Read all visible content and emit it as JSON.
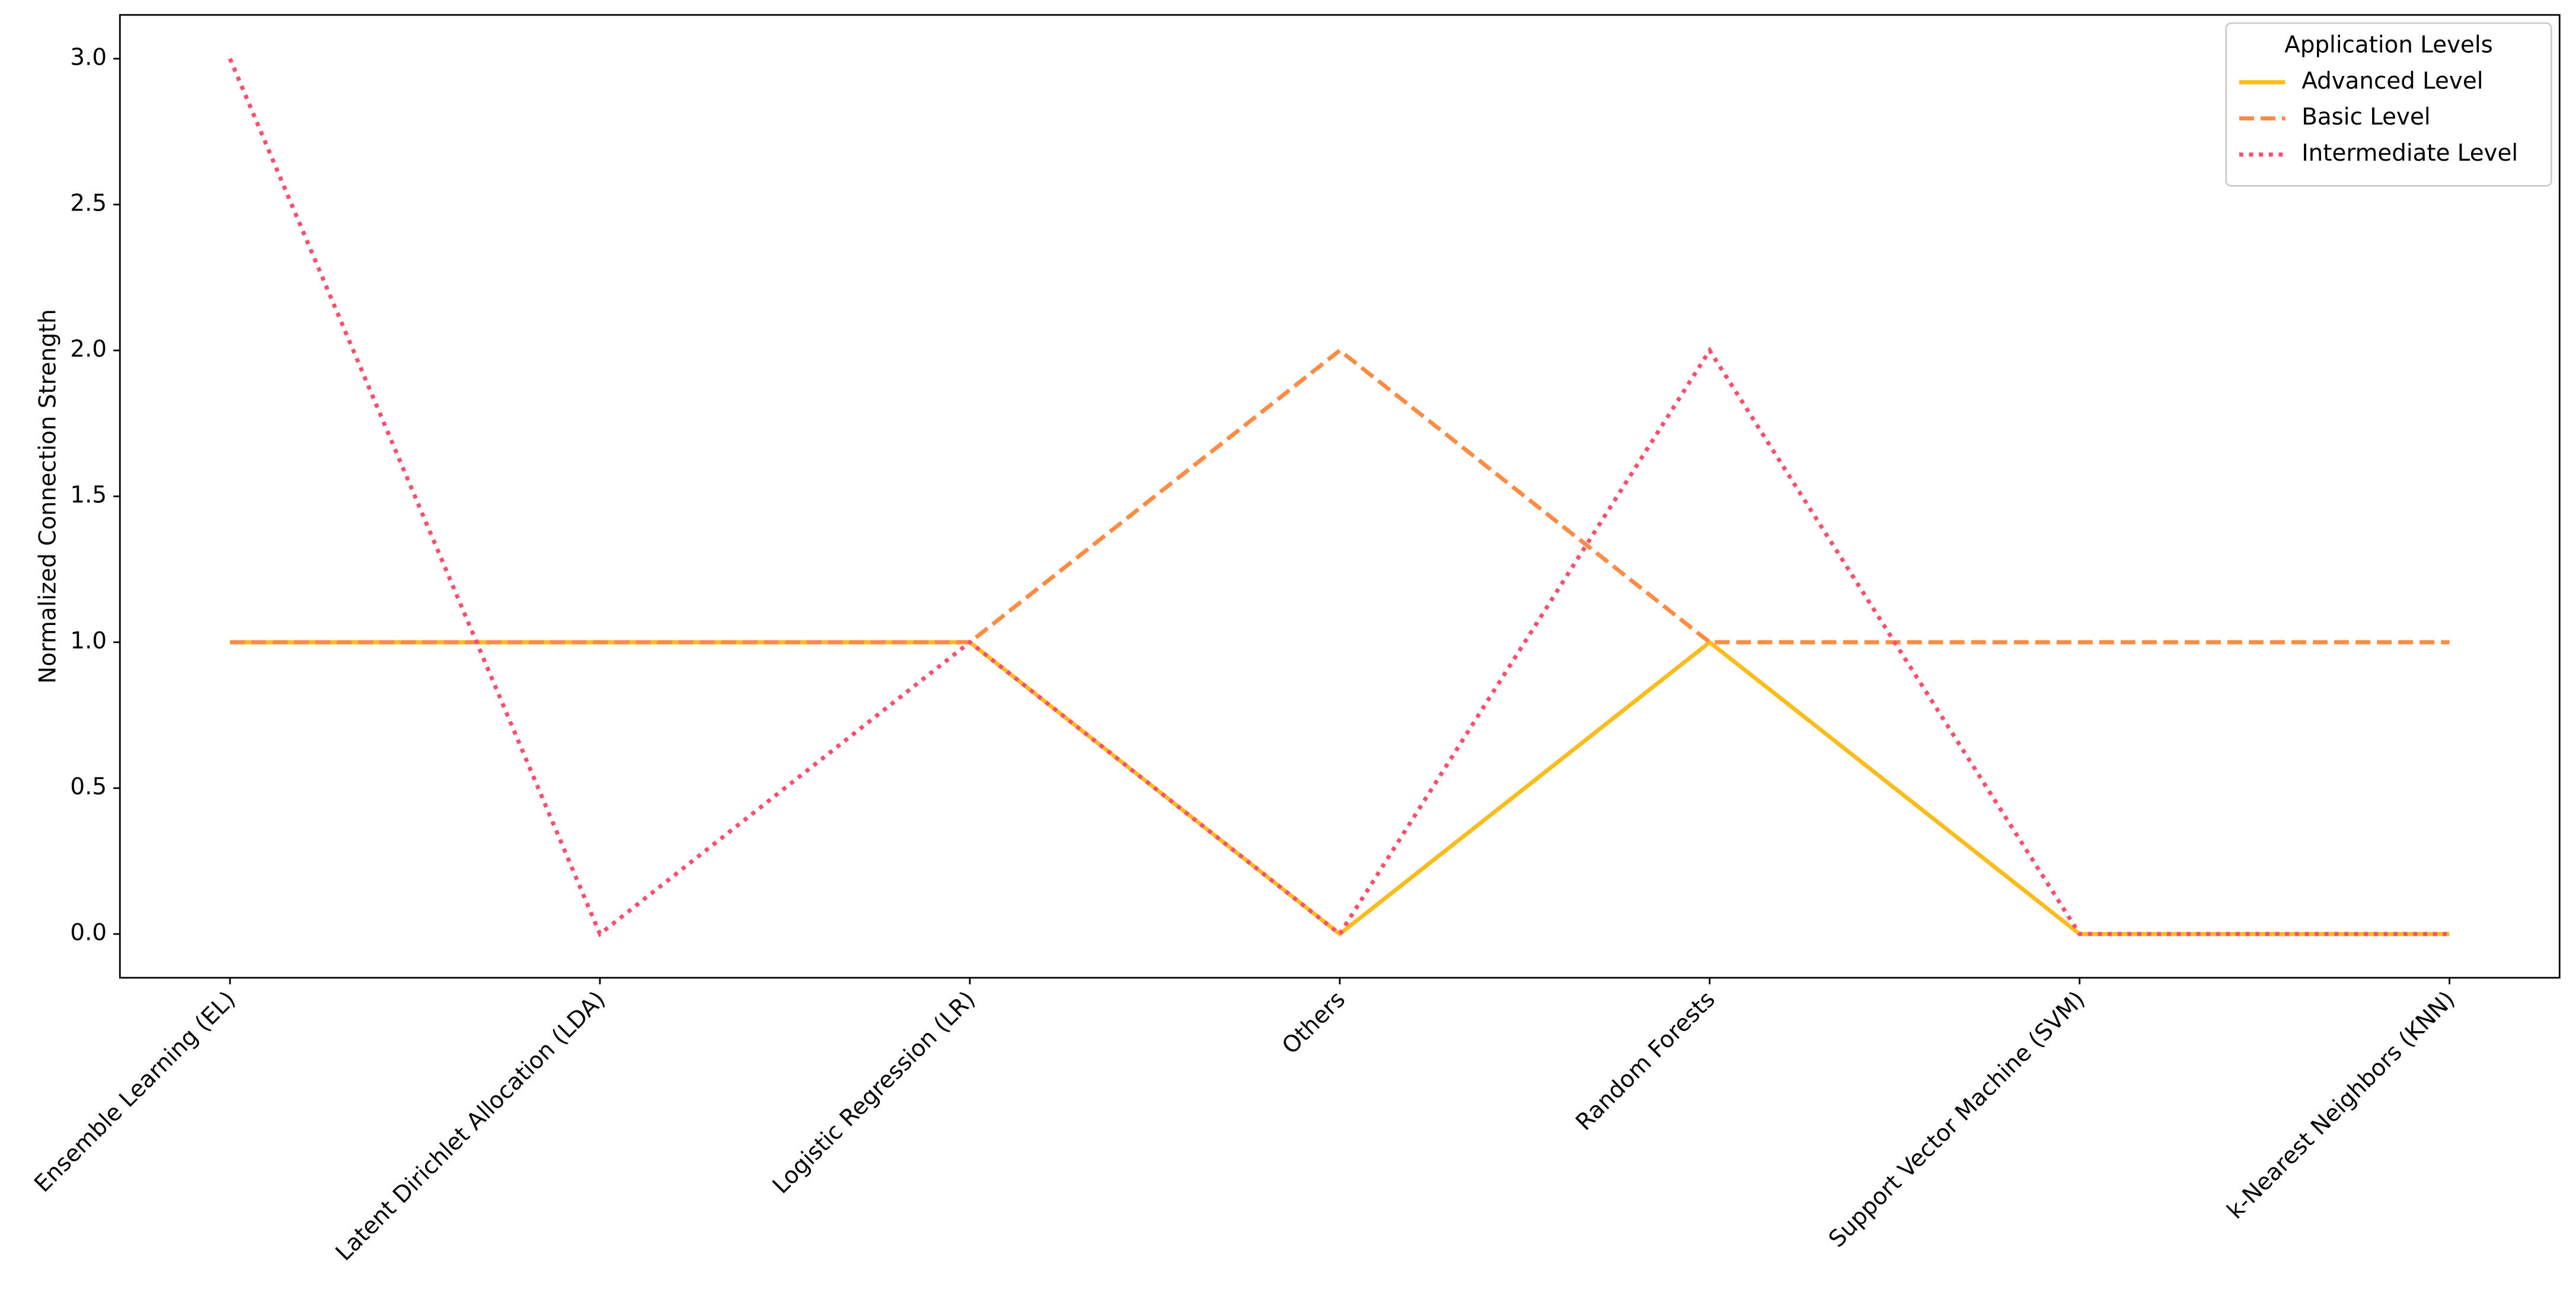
{
  "chart_data": {
    "type": "line",
    "ylabel": "Normalized Connection Strength",
    "categories": [
      "Ensemble Learning (EL)",
      "Latent Dirichlet Allocation (LDA)",
      "Logistic Regression (LR)",
      "Others",
      "Random Forests",
      "Support Vector Machine (SVM)",
      "k-Nearest Neighbors (KNN)"
    ],
    "series": [
      {
        "name": "Advanced Level",
        "color": "#fbbc1c",
        "dash": "solid",
        "values": [
          1,
          1,
          1,
          0,
          1,
          0,
          0
        ]
      },
      {
        "name": "Basic Level",
        "color": "#ff8c42",
        "dash": "dashed",
        "values": [
          1,
          1,
          1,
          2,
          1,
          1,
          1
        ]
      },
      {
        "name": "Intermediate Level",
        "color": "#ff4d6d",
        "dash": "dotted",
        "values": [
          3,
          0,
          1,
          0,
          2,
          0,
          0
        ]
      }
    ],
    "legend": {
      "title": "Application Levels",
      "position": "upper right"
    },
    "ylim": [
      -0.15,
      3.15
    ],
    "yticks": [
      {
        "value": 0,
        "label": "0.0"
      },
      {
        "value": 0.5,
        "label": "0.5"
      },
      {
        "value": 1,
        "label": "1.0"
      },
      {
        "value": 1.5,
        "label": "1.5"
      },
      {
        "value": 2,
        "label": "2.0"
      },
      {
        "value": 2.5,
        "label": "2.5"
      },
      {
        "value": 3,
        "label": "3.0"
      }
    ],
    "grid": false
  }
}
